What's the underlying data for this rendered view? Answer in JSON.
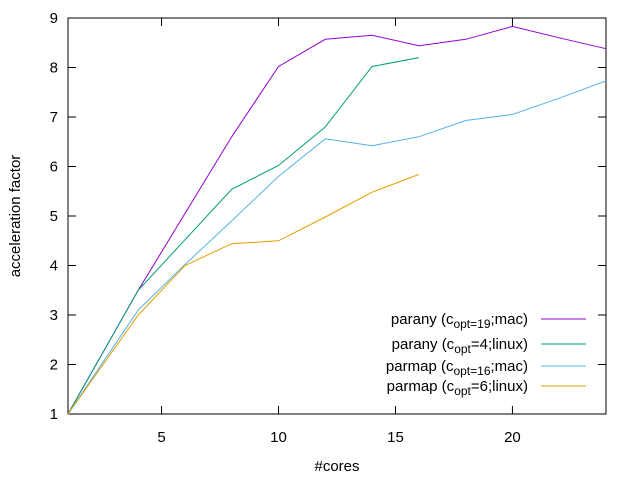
{
  "chart_data": {
    "type": "line",
    "xlabel": "#cores",
    "ylabel": "acceleration factor",
    "xlim": [
      1,
      24
    ],
    "ylim": [
      1,
      9
    ],
    "xticks": [
      5,
      10,
      15,
      20
    ],
    "yticks": [
      1,
      2,
      3,
      4,
      5,
      6,
      7,
      8,
      9
    ],
    "grid": false,
    "legend_position": "bottom-right",
    "series": [
      {
        "name": "parany (c",
        "name_sub": "opt=19",
        "name_suffix": ";mac)",
        "color": "#9400d3",
        "x": [
          1,
          4,
          8,
          10,
          12,
          14,
          16,
          18,
          20,
          22,
          24
        ],
        "y": [
          1,
          3.5,
          6.6,
          8.02,
          8.57,
          8.65,
          8.44,
          8.57,
          8.83,
          8.6,
          8.38
        ]
      },
      {
        "name": "parany (c",
        "name_sub": "opt",
        "name_suffix": "=4;linux)",
        "color": "#009e73",
        "x": [
          1,
          4,
          8,
          10,
          12,
          14,
          16
        ],
        "y": [
          1,
          3.5,
          5.54,
          6.02,
          6.8,
          8.02,
          8.2
        ]
      },
      {
        "name": "parmap (c",
        "name_sub": "opt=16",
        "name_suffix": ";mac)",
        "color": "#56b4e9",
        "x": [
          1,
          4,
          6,
          8,
          10,
          12,
          14,
          16,
          18,
          20,
          22,
          24
        ],
        "y": [
          1,
          3.1,
          4.02,
          4.9,
          5.8,
          6.56,
          6.42,
          6.6,
          6.93,
          7.05,
          7.38,
          7.73
        ]
      },
      {
        "name": "parmap (c",
        "name_sub": "opt",
        "name_suffix": "=6;linux)",
        "color": "#e69f00",
        "x": [
          1,
          4,
          6,
          8,
          10,
          12,
          14,
          16
        ],
        "y": [
          1,
          3.0,
          4.0,
          4.44,
          4.5,
          4.98,
          5.48,
          5.84
        ]
      }
    ]
  }
}
